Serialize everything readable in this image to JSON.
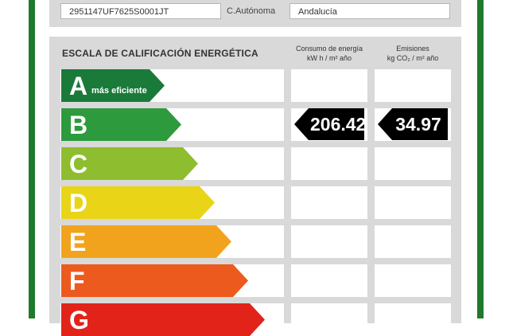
{
  "header": {
    "cadastral_reference": "2951147UF7625S0001JT",
    "region_label": "C.Autónoma",
    "region_value": "Andalucía"
  },
  "scale": {
    "title": "ESCALA DE CALIFICACIÓN ENERGÉTICA",
    "energy_header_line1": "Consumo de energía",
    "energy_header_line2": "kW h / m² año",
    "emissions_header_line1": "Emisiones",
    "emissions_header_line2": "kg CO₂ / m² año",
    "most_efficient_note": "más eficiente",
    "classes": [
      {
        "letter": "A",
        "color": "#1a7a3a"
      },
      {
        "letter": "B",
        "color": "#2e9a3e"
      },
      {
        "letter": "C",
        "color": "#8ebd2f"
      },
      {
        "letter": "D",
        "color": "#e9d418"
      },
      {
        "letter": "E",
        "color": "#f2a31d"
      },
      {
        "letter": "F",
        "color": "#ec5a1e"
      },
      {
        "letter": "G",
        "color": "#e2231a"
      }
    ],
    "rating": {
      "class": "B",
      "energy_value": "206.42",
      "emissions_value": "34.97"
    }
  }
}
